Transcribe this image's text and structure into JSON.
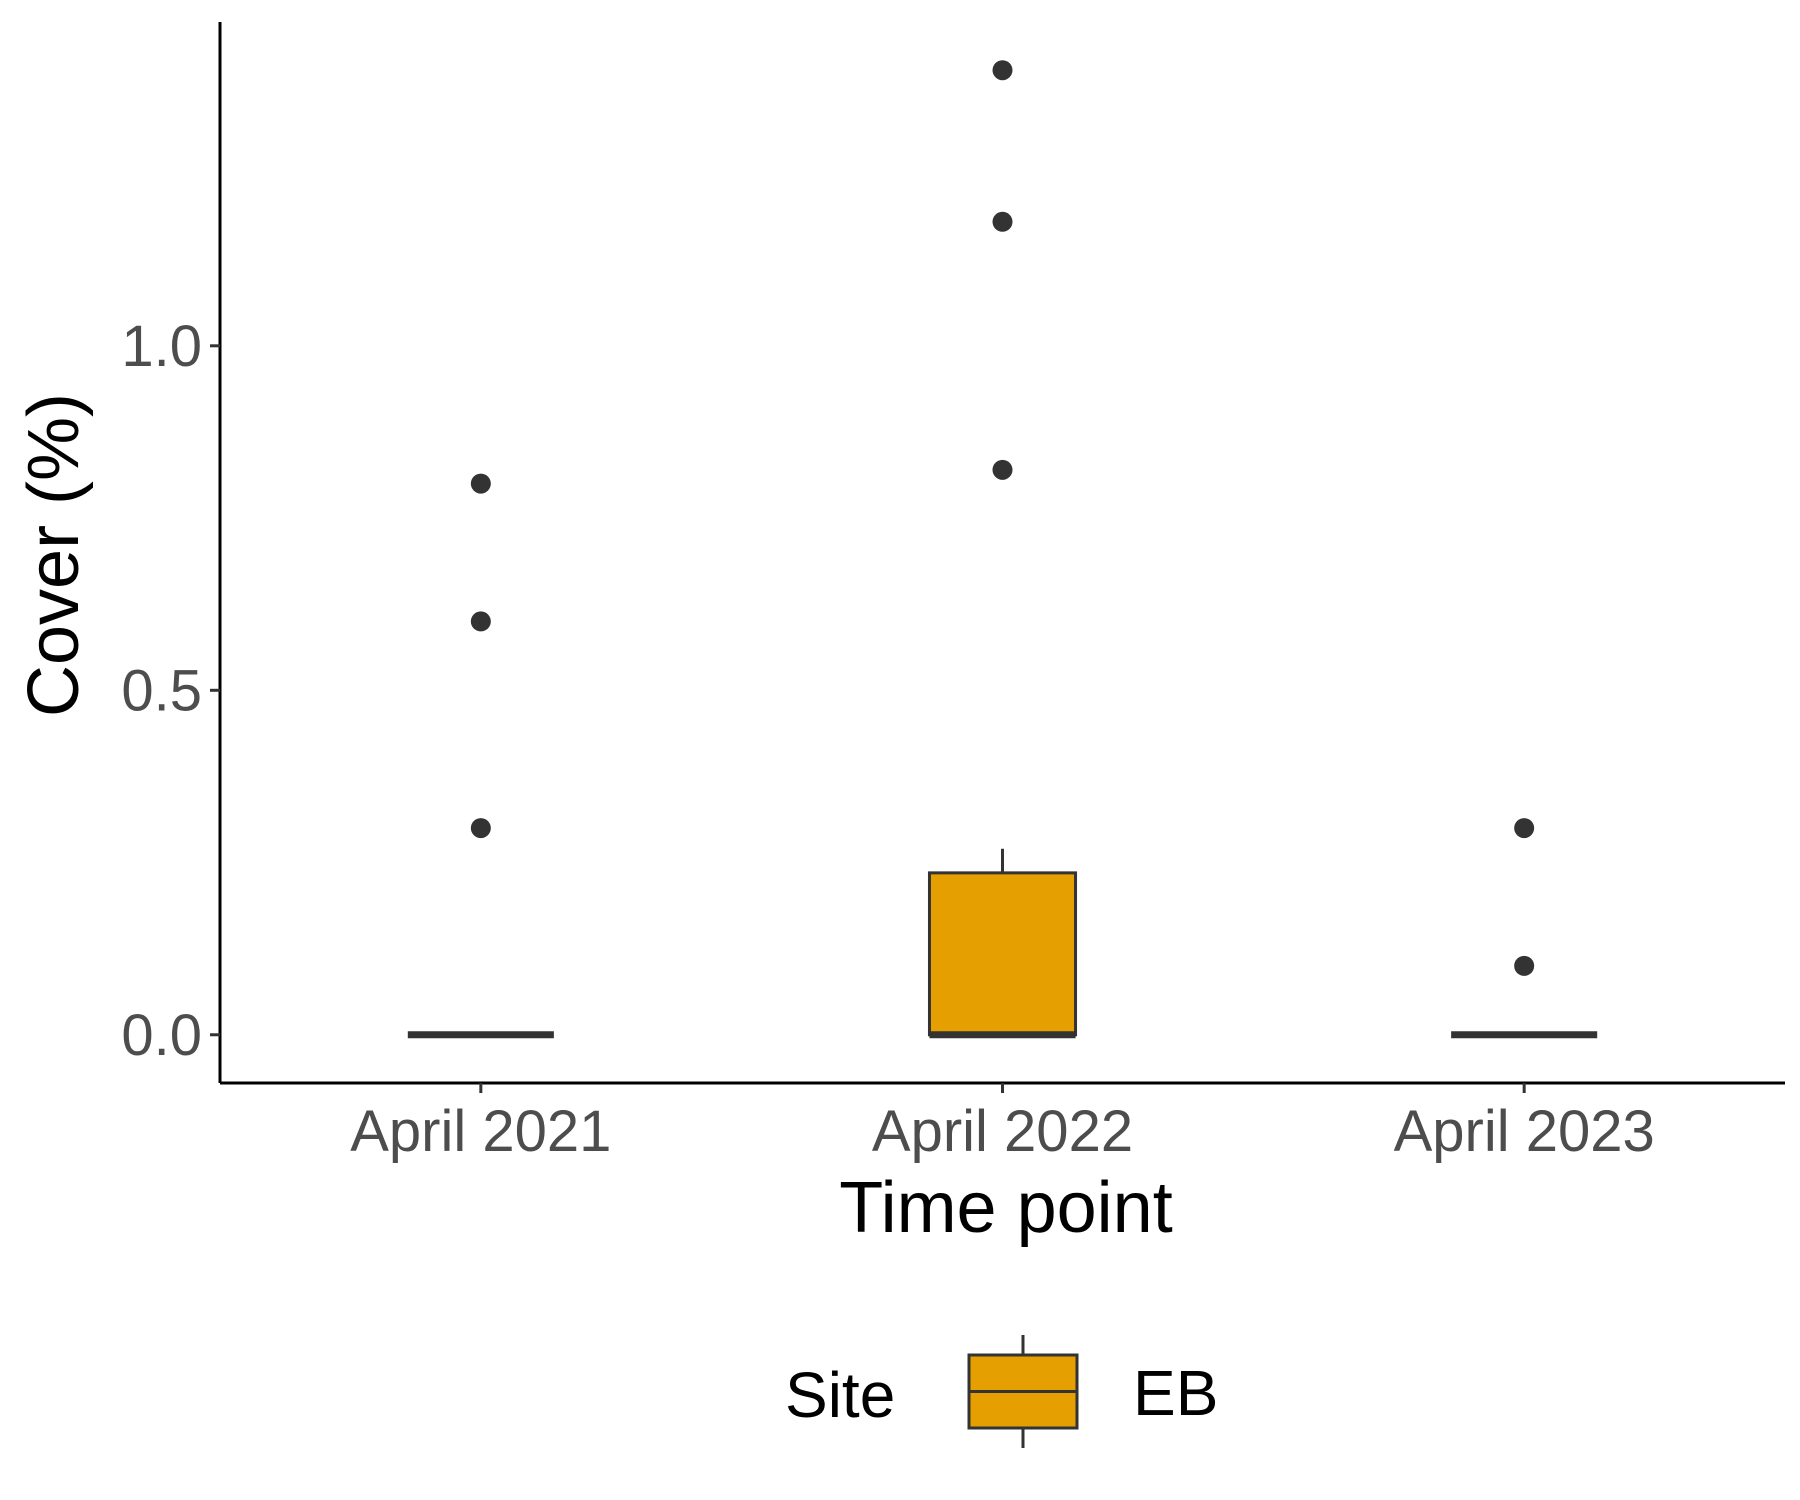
{
  "chart_data": {
    "type": "box",
    "xlabel": "Time point",
    "ylabel": "Cover (%)",
    "categories": [
      "April 2021",
      "April 2022",
      "April 2023"
    ],
    "ylim": [
      -0.07,
      1.47
    ],
    "yticks": [
      0.0,
      0.5,
      1.0
    ],
    "ytick_labels": [
      "0.0",
      "0.5",
      "1.0"
    ],
    "grid": false,
    "series": [
      {
        "name": "EB",
        "color": "#E69F00",
        "boxes": [
          {
            "category": "April 2021",
            "q1": 0.0,
            "median": 0.0,
            "q3": 0.0,
            "whisker_low": 0.0,
            "whisker_high": 0.0,
            "outliers": [
              0.3,
              0.6,
              0.8
            ]
          },
          {
            "category": "April 2022",
            "q1": 0.0,
            "median": 0.0,
            "q3": 0.235,
            "whisker_low": 0.0,
            "whisker_high": 0.27,
            "outliers": [
              0.82,
              1.18,
              1.4
            ]
          },
          {
            "category": "April 2023",
            "q1": 0.0,
            "median": 0.0,
            "q3": 0.0,
            "whisker_low": 0.0,
            "whisker_high": 0.0,
            "outliers": [
              0.1,
              0.3
            ]
          }
        ]
      }
    ],
    "legend": {
      "title": "Site",
      "position": "bottom",
      "entries": [
        "EB"
      ]
    }
  }
}
